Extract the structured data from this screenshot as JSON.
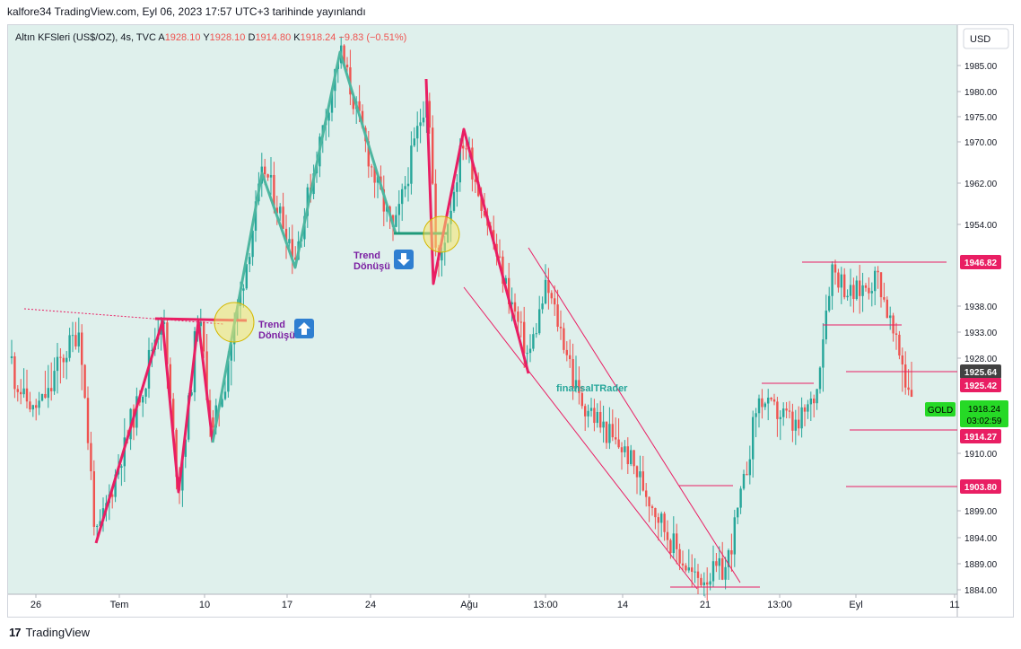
{
  "header": {
    "publish_line": "kalfore34 TradingView.com, Eyl 06, 2023 17:57 UTC+3 tarihinde yayınlandı"
  },
  "footer": {
    "brand": "TradingView"
  },
  "colors": {
    "bg": "#dff0ec",
    "up": "#26a69a",
    "down": "#ef5350",
    "wave_green": "#4db6a0",
    "wave_red": "#e91e63",
    "price_tag": "#e91e63",
    "last_price": "#26d926"
  },
  "chart_data": {
    "type": "candlestick",
    "symbol_label": "Altın KFSleri (US$/OZ), 4s, TVC",
    "ohlc": {
      "A_label": "A",
      "A": "1928.10",
      "Y_label": "Y",
      "Y": "1928.10",
      "D_label": "D",
      "D": "1914.80",
      "K_label": "K",
      "K": "1918.24",
      "change": "−9.83 (−0.51%)"
    },
    "currency": "USD",
    "y_ticks": [
      1985.0,
      1980.0,
      1975.0,
      1970.0,
      1962.0,
      1954.0,
      1946.82,
      1938.0,
      1933.0,
      1928.0,
      1925.64,
      1925.42,
      1918.24,
      1914.27,
      1910.0,
      1903.8,
      1899.0,
      1894.0,
      1889.0,
      1884.0
    ],
    "x_ticks": [
      "26",
      "Tem",
      "10",
      "17",
      "24",
      "Ağu",
      "13:00",
      "14",
      "21",
      "13:00",
      "Eyl",
      "11"
    ],
    "price_tags": [
      {
        "value": "1946.82",
        "color": "#e91e63"
      },
      {
        "value": "1925.64",
        "color": "#424242"
      },
      {
        "value": "1925.42",
        "color": "#e91e63"
      },
      {
        "value": "1914.27",
        "color": "#e91e63"
      },
      {
        "value": "1903.80",
        "color": "#e91e63"
      }
    ],
    "last_price": {
      "label": "GOLD",
      "value": "1918.24",
      "countdown": "03:02:59"
    },
    "annotations": {
      "trend_up": "Trend Dönüşü",
      "trend_down": "Trend Dönüşü",
      "watermark": "finansalTRader"
    }
  }
}
